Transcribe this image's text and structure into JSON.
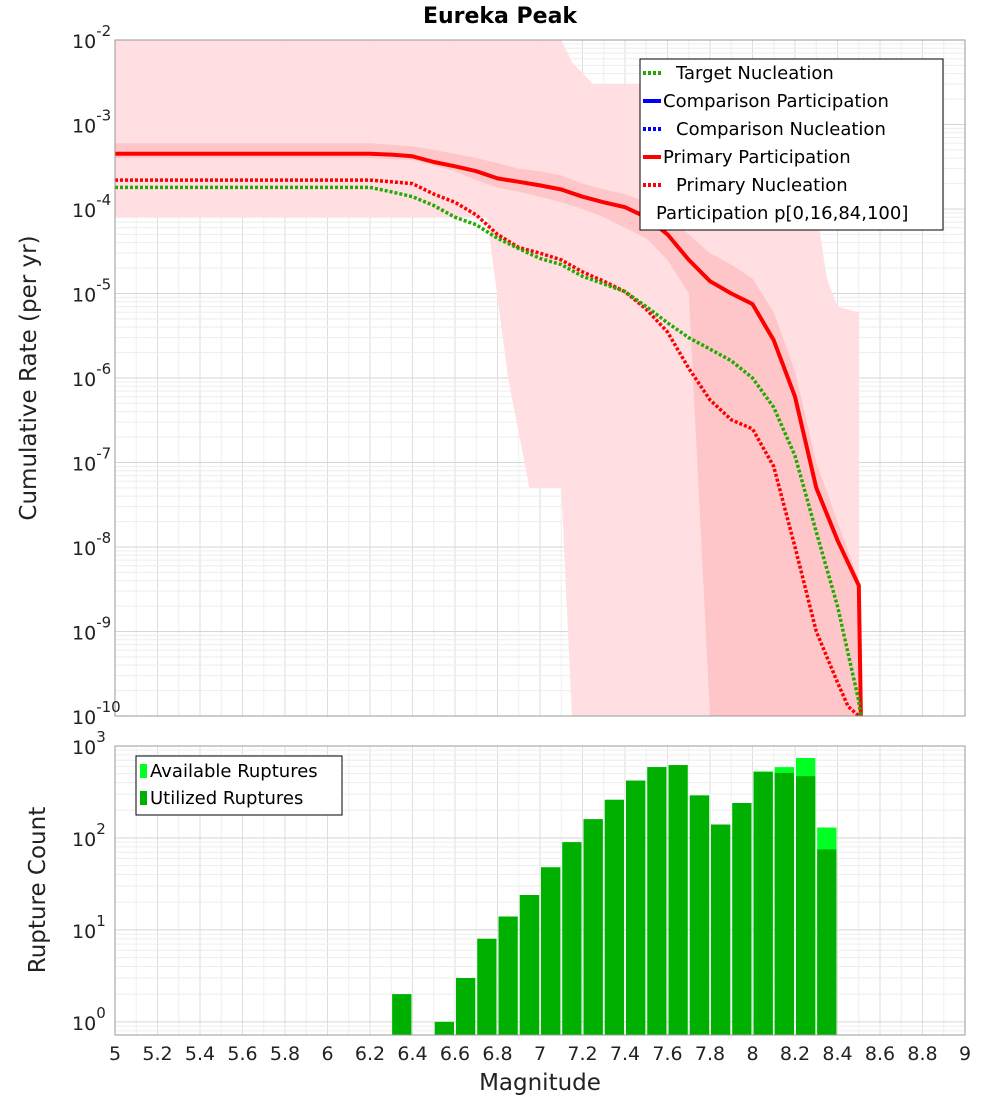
{
  "chart_data": [
    {
      "type": "line",
      "title": "Eureka Peak",
      "xlabel": "",
      "ylabel": "Cumulative Rate (per yr)",
      "xlim": [
        5,
        9
      ],
      "ylim": [
        1e-10,
        0.01
      ],
      "yscale": "log",
      "y_ticks": [
        {
          "base": "10",
          "exp": "-10"
        },
        {
          "base": "10",
          "exp": "-9"
        },
        {
          "base": "10",
          "exp": "-8"
        },
        {
          "base": "10",
          "exp": "-7"
        },
        {
          "base": "10",
          "exp": "-6"
        },
        {
          "base": "10",
          "exp": "-5"
        },
        {
          "base": "10",
          "exp": "-4"
        },
        {
          "base": "10",
          "exp": "-3"
        },
        {
          "base": "10",
          "exp": "-2"
        }
      ],
      "legend": {
        "position": "top-right",
        "entries": [
          {
            "label": "Target Nucleation",
            "color": "#22aa00",
            "style": "dotted"
          },
          {
            "label": "Comparison Participation",
            "color": "#0000ff",
            "style": "solid"
          },
          {
            "label": "Comparison Nucleation",
            "color": "#0000ff",
            "style": "dotted"
          },
          {
            "label": "Primary Participation",
            "color": "#ff0000",
            "style": "solid"
          },
          {
            "label": "Primary Nucleation",
            "color": "#ff0000",
            "style": "dotted"
          },
          {
            "label": "Participation p[0,16,84,100]",
            "color": "#ffb0b0",
            "style": "none"
          }
        ]
      },
      "bands": [
        {
          "name": "Participation p[0,100]",
          "color": "#ffdde0",
          "x": [
            5.0,
            5.8,
            5.95,
            6.3,
            6.5,
            6.6,
            6.75,
            6.85,
            6.95,
            7.0,
            7.05,
            7.1,
            7.15,
            7.25,
            7.5,
            7.6,
            7.7,
            7.8,
            7.9,
            8.0,
            8.05,
            8.2,
            8.3,
            8.35,
            8.4,
            8.5
          ],
          "upper": [
            0.01,
            0.01,
            0.01,
            0.01,
            0.01,
            0.01,
            0.01,
            0.01,
            0.01,
            0.01,
            0.01,
            0.01,
            0.0055,
            0.003,
            0.003,
            0.003,
            0.003,
            0.003,
            0.0022,
            0.0012,
            0.0011,
            0.0009,
            0.0001,
            1.5e-05,
            7e-06,
            6e-06
          ],
          "lower": [
            8e-05,
            8e-05,
            8e-05,
            8e-05,
            8e-05,
            8e-05,
            8e-05,
            1e-06,
            5e-08,
            5e-08,
            5e-08,
            5e-08,
            1e-10,
            1e-10,
            1e-10,
            1e-10,
            1e-10,
            1e-10,
            1e-10,
            1e-10,
            1e-10,
            1e-10,
            1e-10,
            1e-10,
            1e-10,
            1e-10
          ]
        },
        {
          "name": "Participation p[16,84]",
          "color": "#ffbdc0",
          "x": [
            5.0,
            6.2,
            6.4,
            6.5,
            6.6,
            6.7,
            6.8,
            6.9,
            7.0,
            7.1,
            7.2,
            7.3,
            7.4,
            7.5,
            7.6,
            7.7,
            7.8,
            7.9,
            8.0,
            8.1,
            8.2,
            8.3,
            8.4,
            8.5
          ],
          "upper": [
            0.0006,
            0.0006,
            0.00055,
            0.0005,
            0.00045,
            0.0004,
            0.00035,
            0.0003,
            0.00028,
            0.00025,
            0.0002,
            0.00017,
            0.00015,
            0.00012,
            8e-05,
            5e-05,
            3e-05,
            2.2e-05,
            1.5e-05,
            6e-06,
            1.2e-06,
            1e-07,
            2e-08,
            4e-09
          ],
          "lower": [
            0.0004,
            0.0004,
            0.00038,
            0.00033,
            0.00028,
            0.00022,
            0.00018,
            0.00016,
            0.00014,
            0.00012,
            0.0001,
            8e-05,
            6e-05,
            4.5e-05,
            2.5e-05,
            1e-05,
            1e-10,
            1e-10,
            1e-10,
            1e-10,
            1e-10,
            1e-10,
            1e-10,
            1e-10
          ]
        }
      ],
      "series": [
        {
          "name": "Primary Participation",
          "color": "#ff0000",
          "style": "solid",
          "x": [
            5.0,
            5.1,
            5.2,
            5.3,
            5.4,
            5.5,
            5.6,
            5.7,
            5.8,
            5.9,
            6.0,
            6.1,
            6.2,
            6.3,
            6.4,
            6.5,
            6.6,
            6.7,
            6.8,
            6.9,
            7.0,
            7.1,
            7.2,
            7.3,
            7.4,
            7.5,
            7.6,
            7.7,
            7.8,
            7.9,
            8.0,
            8.1,
            8.2,
            8.3,
            8.4,
            8.5,
            8.51
          ],
          "y": [
            0.00045,
            0.00045,
            0.00045,
            0.00045,
            0.00045,
            0.00045,
            0.00045,
            0.00045,
            0.00045,
            0.00045,
            0.00045,
            0.00045,
            0.00045,
            0.00044,
            0.00042,
            0.00036,
            0.00032,
            0.00028,
            0.00023,
            0.00021,
            0.00019,
            0.00017,
            0.00014,
            0.00012,
            0.000105,
            8e-05,
            5e-05,
            2.5e-05,
            1.4e-05,
            1e-05,
            7.5e-06,
            2.8e-06,
            6e-07,
            5e-08,
            1.2e-08,
            3.5e-09,
            1e-10
          ]
        },
        {
          "name": "Primary Nucleation",
          "color": "#ff0000",
          "style": "dotted",
          "x": [
            5.0,
            5.1,
            5.2,
            5.3,
            5.4,
            5.5,
            5.6,
            5.7,
            5.8,
            5.9,
            6.0,
            6.1,
            6.2,
            6.3,
            6.4,
            6.5,
            6.6,
            6.7,
            6.8,
            6.9,
            7.0,
            7.1,
            7.2,
            7.3,
            7.4,
            7.5,
            7.6,
            7.7,
            7.8,
            7.9,
            8.0,
            8.1,
            8.2,
            8.3,
            8.4,
            8.45,
            8.5
          ],
          "y": [
            0.00022,
            0.00022,
            0.00022,
            0.00022,
            0.00022,
            0.00022,
            0.00022,
            0.00022,
            0.00022,
            0.00022,
            0.00022,
            0.00022,
            0.00022,
            0.00021,
            0.0002,
            0.00015,
            0.00012,
            8.5e-05,
            5e-05,
            3.5e-05,
            3e-05,
            2.5e-05,
            1.8e-05,
            1.4e-05,
            1.05e-05,
            6.5e-06,
            3.5e-06,
            1.3e-06,
            5.5e-07,
            3.2e-07,
            2.5e-07,
            9e-08,
            1e-08,
            1e-09,
            2.5e-10,
            1.3e-10,
            1e-10
          ]
        },
        {
          "name": "Target Nucleation",
          "color": "#22aa00",
          "style": "dotted",
          "x": [
            5.0,
            5.1,
            5.2,
            5.3,
            5.4,
            5.5,
            5.6,
            5.7,
            5.8,
            5.9,
            6.0,
            6.1,
            6.2,
            6.3,
            6.4,
            6.5,
            6.6,
            6.7,
            6.8,
            6.9,
            7.0,
            7.1,
            7.2,
            7.3,
            7.4,
            7.5,
            7.6,
            7.7,
            7.8,
            7.9,
            8.0,
            8.1,
            8.2,
            8.3,
            8.4,
            8.5,
            8.51
          ],
          "y": [
            0.00018,
            0.00018,
            0.00018,
            0.00018,
            0.00018,
            0.00018,
            0.00018,
            0.00018,
            0.00018,
            0.00018,
            0.00018,
            0.00018,
            0.00018,
            0.00016,
            0.00014,
            0.00011,
            8e-05,
            6.5e-05,
            4.5e-05,
            3.4e-05,
            2.6e-05,
            2.2e-05,
            1.6e-05,
            1.3e-05,
            1.05e-05,
            7e-06,
            4.5e-06,
            3e-06,
            2.2e-06,
            1.6e-06,
            1e-06,
            4.5e-07,
            1.2e-07,
            1.5e-08,
            2e-09,
            1.5e-10,
            1e-10
          ]
        }
      ]
    },
    {
      "type": "bar",
      "title": "",
      "xlabel": "Magnitude",
      "ylabel": "Rupture Count",
      "xlim": [
        5,
        9
      ],
      "ylim": [
        0.72,
        1000
      ],
      "yscale": "log",
      "bin_width": 0.1,
      "x_ticks": [
        "5",
        "5.2",
        "5.4",
        "5.6",
        "5.8",
        "6",
        "6.2",
        "6.4",
        "6.6",
        "6.8",
        "7",
        "7.2",
        "7.4",
        "7.6",
        "7.8",
        "8",
        "8.2",
        "8.4",
        "8.6",
        "8.8",
        "9"
      ],
      "y_ticks": [
        {
          "base": "10",
          "exp": "0"
        },
        {
          "base": "10",
          "exp": "1"
        },
        {
          "base": "10",
          "exp": "2"
        },
        {
          "base": "10",
          "exp": "3"
        }
      ],
      "legend": {
        "position": "top-left",
        "entries": [
          {
            "label": "Available Ruptures",
            "color": "#00ff22"
          },
          {
            "label": "Utilized Ruptures",
            "color": "#00b000"
          }
        ]
      },
      "series": [
        {
          "name": "Available Ruptures",
          "color": "#00ff22",
          "x": [
            6.35,
            6.55,
            6.65,
            6.75,
            6.85,
            6.95,
            7.05,
            7.15,
            7.25,
            7.35,
            7.45,
            7.55,
            7.65,
            7.75,
            7.85,
            7.95,
            8.05,
            8.15,
            8.25,
            8.35
          ],
          "values": [
            2,
            1,
            3,
            8,
            14,
            24,
            48,
            90,
            160,
            260,
            420,
            590,
            620,
            290,
            140,
            240,
            530,
            590,
            740,
            130
          ]
        },
        {
          "name": "Utilized Ruptures",
          "color": "#00b000",
          "x": [
            6.35,
            6.55,
            6.65,
            6.75,
            6.85,
            6.95,
            7.05,
            7.15,
            7.25,
            7.35,
            7.45,
            7.55,
            7.65,
            7.75,
            7.85,
            7.95,
            8.05,
            8.15,
            8.25,
            8.35
          ],
          "values": [
            2,
            1,
            3,
            8,
            14,
            24,
            48,
            90,
            160,
            260,
            420,
            590,
            620,
            290,
            140,
            240,
            520,
            510,
            470,
            75
          ]
        }
      ]
    }
  ]
}
